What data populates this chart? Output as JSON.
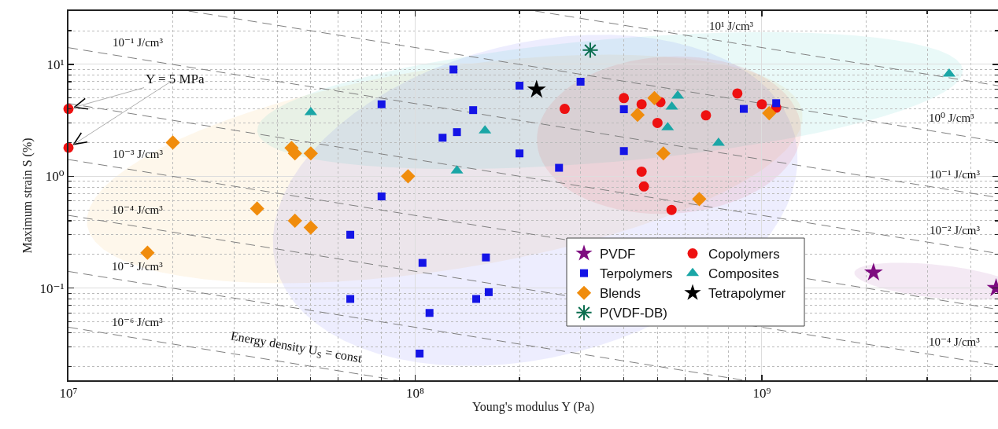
{
  "chart_data": {
    "type": "scatter",
    "xlabel": "Young's modulus Y (Pa)",
    "ylabel": "Maximum strain S (%)",
    "log": "xy",
    "grid": true,
    "legend": "bottom",
    "xlim": [
      10000000.0,
      4800000000.0
    ],
    "ylim": [
      0.015,
      30
    ],
    "xticks": [
      {
        "value": 10000000.0,
        "label": "10⁷"
      },
      {
        "value": 100000000.0,
        "label": "10⁸"
      },
      {
        "value": 1000000000.0,
        "label": "10⁹"
      }
    ],
    "yticks": [
      {
        "value": 0.1,
        "label": "10⁻¹"
      },
      {
        "value": 1,
        "label": "10⁰"
      },
      {
        "value": 10,
        "label": "10¹"
      }
    ],
    "series": [
      {
        "type": "line",
        "color": "#808080",
        "line_style": "dashed",
        "marker": "none",
        "x": [
          222000000.0,
          4800000000.0
        ],
        "values": [
          30,
          6.45
        ]
      },
      {
        "type": "line",
        "color": "#808080",
        "line_style": "dashed",
        "marker": "none",
        "x": [
          22200000.0,
          4800000000.0
        ],
        "values": [
          30,
          2.04
        ]
      },
      {
        "type": "line",
        "color": "#808080",
        "line_style": "dashed",
        "marker": "none",
        "x": [
          10000000.0,
          4800000000.0
        ],
        "values": [
          14.1,
          0.645
        ]
      },
      {
        "type": "line",
        "color": "#808080",
        "line_style": "dashed",
        "marker": "none",
        "x": [
          10000000.0,
          4800000000.0
        ],
        "values": [
          4.47,
          0.204
        ]
      },
      {
        "type": "line",
        "color": "#808080",
        "line_style": "dashed",
        "marker": "none",
        "x": [
          10000000.0,
          4800000000.0
        ],
        "values": [
          1.41,
          0.0645
        ]
      },
      {
        "type": "line",
        "color": "#808080",
        "line_style": "dashed",
        "marker": "none",
        "x": [
          10000000.0,
          4800000000.0
        ],
        "values": [
          0.447,
          0.0204
        ]
      },
      {
        "type": "line",
        "color": "#808080",
        "line_style": "dashed",
        "marker": "none",
        "x": [
          10000000.0,
          889000000.0
        ],
        "values": [
          0.141,
          0.015
        ]
      },
      {
        "type": "line",
        "color": "#808080",
        "line_style": "dashed",
        "marker": "none",
        "x": [
          10000000.0,
          88900000.0
        ],
        "values": [
          0.0447,
          0.015
        ]
      },
      {
        "name": "PVDF",
        "color": "#7e0b80",
        "marker": "star",
        "x": [
          2100000000.0,
          4740000000.0
        ],
        "values": [
          0.138,
          0.1
        ]
      },
      {
        "name": "Copolymers",
        "color": "#ee1111",
        "marker": "circle",
        "x": [
          10000000.0,
          10000000.0,
          270000000.0,
          400000000.0,
          450000000.0,
          510000000.0,
          500000000.0,
          450000000.0,
          457000000.0,
          549000000.0,
          690000000.0,
          850000000.0,
          1000000000.0,
          1100000000.0
        ],
        "values": [
          4,
          1.8,
          4,
          5,
          4.4,
          4.6,
          3,
          1.1,
          0.81,
          0.5,
          3.5,
          5.5,
          4.4,
          4.1
        ]
      },
      {
        "name": "Terpolymers",
        "color": "#1414e6",
        "marker": "square",
        "x": [
          80000000.0,
          80000000.0,
          65000000.0,
          65000000.0,
          129000000.0,
          200000000.0,
          300000000.0,
          147000000.0,
          132000000.0,
          120000000.0,
          400000000.0,
          200000000.0,
          400000000.0,
          260000000.0,
          105000000.0,
          160000000.0,
          163000000.0,
          150000000.0,
          110000000.0,
          103000000.0,
          887000000.0,
          1100000000.0
        ],
        "values": [
          4.4,
          0.66,
          0.3,
          0.08,
          9,
          6.45,
          7,
          3.9,
          2.48,
          2.21,
          3.97,
          1.6,
          1.68,
          1.19,
          0.168,
          0.188,
          0.092,
          0.08,
          0.06,
          0.026,
          4,
          4.5
        ]
      },
      {
        "name": "Composites",
        "color": "#1aa6a6",
        "marker": "triangle",
        "x": [
          50000000.0,
          159000000.0,
          132000000.0,
          572000000.0,
          550000000.0,
          535000000.0,
          750000000.0,
          3470000000.0
        ],
        "values": [
          3.72,
          2.56,
          1.12,
          5.23,
          4.17,
          2.73,
          1.98,
          8.23
        ]
      },
      {
        "name": "Blends",
        "color": "#f08c0c",
        "marker": "diamond",
        "x": [
          20000000.0,
          44000000.0,
          45000000.0,
          50000000.0,
          35000000.0,
          45000000.0,
          50000000.0,
          16900000.0,
          95400000.0,
          490000000.0,
          438000000.0,
          520000000.0,
          1050000000.0,
          660000000.0
        ],
        "values": [
          2,
          1.79,
          1.6,
          1.6,
          0.514,
          0.4,
          0.348,
          0.207,
          1,
          5,
          3.54,
          1.6,
          3.66,
          0.625
        ]
      },
      {
        "name": "Tetrapolymer",
        "color": "#000000",
        "marker": "star",
        "x": [
          224000000.0
        ],
        "values": [
          5.95
        ]
      },
      {
        "name": "P(VDF-DB)",
        "color": "#0b6e4f",
        "marker": "cross",
        "x": [
          320000000.0
        ],
        "values": [
          13.4
        ]
      }
    ],
    "annotations": [
      {
        "text": "10⁻¹ J/cm³",
        "x": 15800000.0,
        "y": 11.2
      },
      {
        "text": "10⁻³ J/cm³",
        "x": 15800000.0,
        "y": 1.12
      },
      {
        "text": "10⁻⁴ J/cm³",
        "x": 15800000.0,
        "y": 0.356
      },
      {
        "text": "10⁻⁵ J/cm³",
        "x": 15800000.0,
        "y": 0.112
      },
      {
        "text": "10⁻⁶ J/cm³",
        "x": 15800000.0,
        "y": 0.0356
      },
      {
        "text": "10¹ J/cm³",
        "x": 816000000.0,
        "y": 15.6
      },
      {
        "text": "10⁰ J/cm³",
        "x": 3520000000.0,
        "y": 2.38
      },
      {
        "text": "10⁻¹ J/cm³",
        "x": 3600000000.0,
        "y": 0.745
      },
      {
        "text": "10⁻² J/cm³",
        "x": 3600000000.0,
        "y": 0.236
      },
      {
        "text": "10⁻⁴ J/cm³",
        "x": 3600000000.0,
        "y": 0.0236
      },
      {
        "text": "Y = 5 MPa",
        "x": 10000000.0,
        "y": 4
      },
      {
        "text": "Energy density U$_{S}$ = const",
        "x": 45500000.0,
        "y": 0.021
      }
    ]
  }
}
